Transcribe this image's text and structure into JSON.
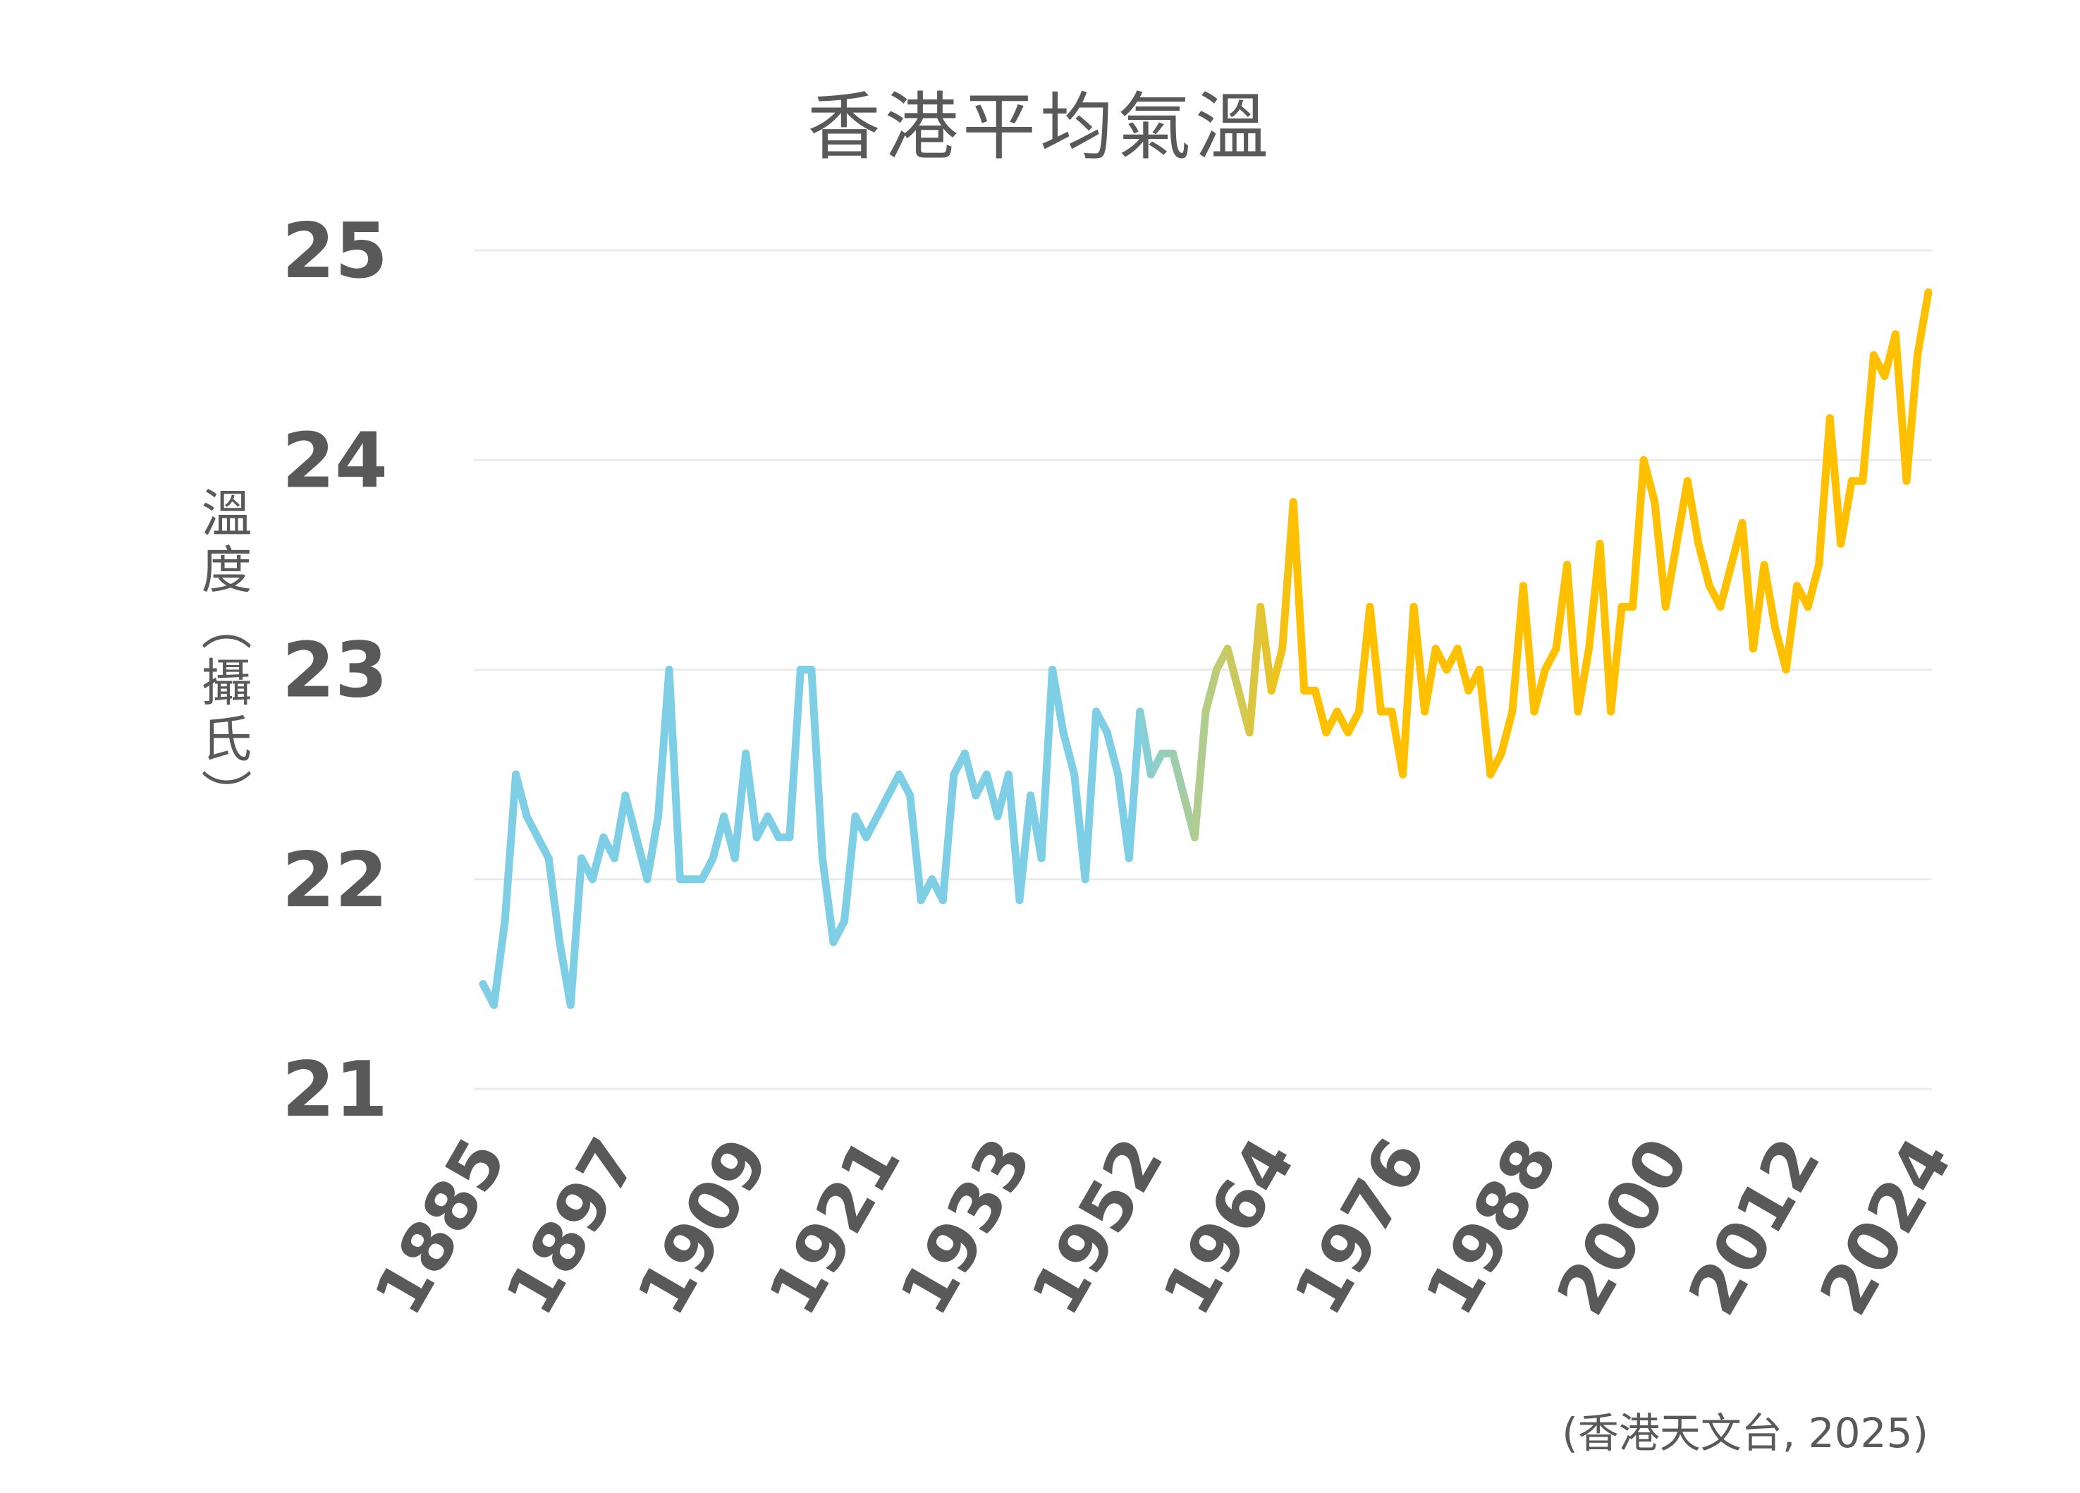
{
  "chart_data": {
    "type": "line",
    "title": "香港平均氣溫",
    "ylabel": "溫度（攝氏）",
    "xlabel": "",
    "source": "(香港天文台, 2025)",
    "ylim": [
      21,
      25
    ],
    "yticks": [
      21,
      22,
      23,
      24,
      25
    ],
    "xtick_labels": [
      "1885",
      "1897",
      "1909",
      "1921",
      "1933",
      "1952",
      "1964",
      "1976",
      "1988",
      "2000",
      "2012",
      "2024"
    ],
    "grid": true,
    "colors": {
      "start": "#7ecfe6",
      "mid": "#b8cc80",
      "end": "#ffc000"
    },
    "series": [
      {
        "values": [
          21.5,
          21.4,
          21.8,
          22.5,
          22.3,
          22.2,
          22.1,
          21.7,
          21.4,
          22.1,
          22.0,
          22.2,
          22.1,
          22.4,
          22.2,
          22.0,
          22.3,
          23.0,
          22.0,
          22.0,
          22.0,
          22.1,
          22.3,
          22.1,
          22.6,
          22.2,
          22.3,
          22.2,
          22.2,
          23.0,
          23.0,
          22.1,
          21.7,
          21.8,
          22.3,
          22.2,
          22.3,
          22.4,
          22.5,
          22.4,
          21.9,
          22.0,
          21.9,
          22.5,
          22.6,
          22.4,
          22.5,
          22.3,
          22.5,
          21.9,
          22.4,
          22.1,
          23.0,
          22.7,
          22.5,
          22.0,
          22.8,
          22.7,
          22.5,
          22.1,
          22.8,
          22.5,
          22.6,
          22.6,
          22.4,
          22.2,
          22.8,
          23.0,
          23.1,
          22.9,
          22.7,
          23.3,
          22.9,
          23.1,
          23.8,
          22.9,
          22.9,
          22.7,
          22.8,
          22.7,
          22.8,
          23.3,
          22.8,
          22.8,
          22.5,
          23.3,
          22.8,
          23.1,
          23.0,
          23.1,
          22.9,
          23.0,
          22.5,
          22.6,
          22.8,
          23.4,
          22.8,
          23.0,
          23.1,
          23.5,
          22.8,
          23.1,
          23.6,
          22.8,
          23.3,
          23.3,
          24.0,
          23.8,
          23.3,
          23.6,
          23.9,
          23.6,
          23.4,
          23.3,
          23.5,
          23.7,
          23.1,
          23.5,
          23.2,
          23.0,
          23.4,
          23.3,
          23.5,
          24.2,
          23.6,
          23.9,
          23.9,
          24.5,
          24.4,
          24.6,
          23.9,
          24.5,
          24.8
        ]
      }
    ]
  }
}
